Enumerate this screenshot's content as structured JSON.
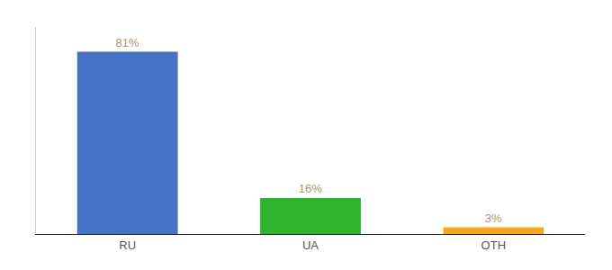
{
  "chart_data": {
    "type": "bar",
    "categories": [
      "RU",
      "UA",
      "OTH"
    ],
    "values": [
      81,
      16,
      3
    ],
    "value_labels": [
      "81%",
      "16%",
      "3%"
    ],
    "colors": [
      "#4472c4",
      "#2db52d",
      "#f5a623"
    ],
    "ylim": [
      0,
      92
    ],
    "data_labels": true,
    "tick_labels": "x",
    "grid": false
  }
}
